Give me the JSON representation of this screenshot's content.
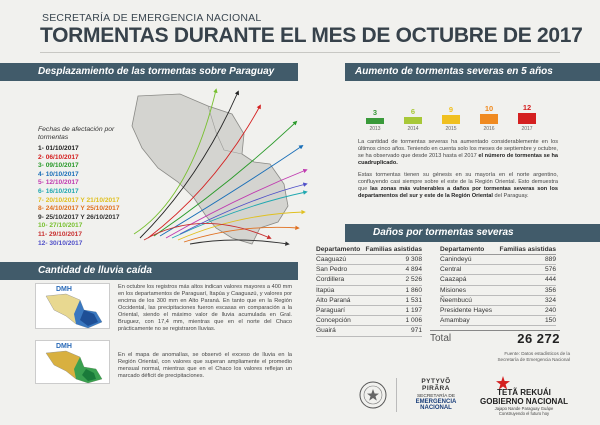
{
  "header": {
    "supertitle": "SECRETARÍA DE EMERGENCIA NACIONAL",
    "title": "TORMENTAS DURANTE EL MES DE OCTUBRE DE 2017"
  },
  "sections": {
    "displacement": "Desplazamiento de las tormentas sobre Paraguay",
    "increase": "Aumento de tormentas severas en 5 años",
    "damages": "Daños por tormentas severas",
    "rain": "Cantidad de lluvia caída"
  },
  "legend": {
    "title": "Fechas de afectación por tormentas",
    "items": [
      {
        "label": "1-  01/10/2017",
        "color": "#222222"
      },
      {
        "label": "2-  06/10/2017",
        "color": "#d42020"
      },
      {
        "label": "3-  09/10/2017",
        "color": "#2a9a2a"
      },
      {
        "label": "4-  10/10/2017",
        "color": "#1a6fb8"
      },
      {
        "label": "5-  12/10/2017",
        "color": "#c03ab0"
      },
      {
        "label": "6-  16/10/2017",
        "color": "#20a8b0"
      },
      {
        "label": "7-  20/10/2017 Y 21/10/2017",
        "color": "#e0c020"
      },
      {
        "label": "8-  24/10/2017 Y 25/10/2017",
        "color": "#e07020"
      },
      {
        "label": "9-  25/10/2017 Y 26/10/2017",
        "color": "#333333"
      },
      {
        "label": "10-  27/10/2017",
        "color": "#78c030"
      },
      {
        "label": "11-  29/10/2017",
        "color": "#c83030"
      },
      {
        "label": "12-  30/10/2017",
        "color": "#5050c8"
      }
    ]
  },
  "chart_data": {
    "type": "bar",
    "categories": [
      "2013",
      "2014",
      "2015",
      "2016",
      "2017"
    ],
    "values": [
      3,
      6,
      9,
      10,
      12
    ],
    "colors": [
      "#3a9a3a",
      "#a8c838",
      "#f0c020",
      "#f08a20",
      "#d42020"
    ],
    "ylim": [
      0,
      12
    ]
  },
  "increase_text": {
    "p1_a": "La cantidad de tormentas severas ha aumentado considerablemente en los últimos cinco años. Teniendo en cuenta solo los meses de septiembre y octubre, se ha observado que desde 2013 hasta el 2017",
    "p1_b": "el número de tormentas se ha cuadruplicado.",
    "p2_a": "Estas tormentas tienen su génesis en su mayoría en el norte argentino, confluyendo casi siempre sobre el este de la Región Oriental. Esto demuestra que",
    "p2_b": "las zonas más vulnerables a daños por tormentas severas son los departamentos del sur y este de la Región Oriental",
    "p2_c": "del Paraguay."
  },
  "damages": {
    "col_dept": "Departamento",
    "col_fam": "Familias asistidas",
    "left": [
      {
        "d": "Caaguazú",
        "v": "9 308"
      },
      {
        "d": "San Pedro",
        "v": "4 894"
      },
      {
        "d": "Cordillera",
        "v": "2 526"
      },
      {
        "d": "Itapúa",
        "v": "1 860"
      },
      {
        "d": "Alto Paraná",
        "v": "1 531"
      },
      {
        "d": "Paraguarí",
        "v": "1 197"
      },
      {
        "d": "Concepción",
        "v": "1 006"
      },
      {
        "d": "Guairá",
        "v": "971"
      }
    ],
    "right": [
      {
        "d": "Canindeyú",
        "v": "889"
      },
      {
        "d": "Central",
        "v": "576"
      },
      {
        "d": "Caazapá",
        "v": "444"
      },
      {
        "d": "Misiones",
        "v": "356"
      },
      {
        "d": "Ñeembucú",
        "v": "324"
      },
      {
        "d": "Presidente Hayes",
        "v": "240"
      },
      {
        "d": "Amambay",
        "v": "150"
      }
    ],
    "total_label": "Total",
    "total_value": "26 272",
    "source_a": "Fuente: Datos estadísticos de la",
    "source_b": "Secretaría de Emergencia Nacional"
  },
  "rain_text": {
    "p1": "En octubre los registros más altos indican valores mayores a 400 mm en los departamentos de Paraguarí, Itapúa y Caaguazú, y valores por encima de los 300 mm en Alto Paraná. En tanto que en la Región Occidental, las precipitaciones fueron escasas en comparación a la Oriental, siendo el máximo valor de lluvia acumulada en Gral. Bruguez, con 17,4 mm, mientras que en el norte del Chaco prácticamente no se registraron lluvias.",
    "p2": "En el mapa de anomalías, se observó el exceso de lluvia en la Región Oriental, con valores que superan ampliamente el promedio mensual normal, mientras que en el Chaco los valores reflejan un marcado déficit de precipitaciones."
  },
  "dmh": {
    "label": "DMH"
  },
  "footer": {
    "sen_top": "PYTYVÕ",
    "sen_mid": "PIRÃRA",
    "sen_a": "SECRETARÍA DE",
    "sen_b": "EMERGENCIA",
    "sen_c": "NACIONAL",
    "gov_a": "TETÃ REKUÁI",
    "gov_b": "GOBIERNO NACIONAL",
    "gov_c": "Jajapo Nande Paraguay Guápe",
    "gov_d": "Construyendo el futuro hoy"
  }
}
